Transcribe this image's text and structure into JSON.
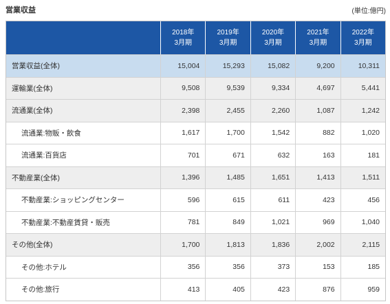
{
  "chart_data": {
    "type": "table",
    "title": "営業収益",
    "unit": "(単位:億円)",
    "columns": [
      {
        "year": "2018年",
        "period": "3月期"
      },
      {
        "year": "2019年",
        "period": "3月期"
      },
      {
        "year": "2020年",
        "period": "3月期"
      },
      {
        "year": "2021年",
        "period": "3月期"
      },
      {
        "year": "2022年",
        "period": "3月期"
      }
    ],
    "rows": [
      {
        "label": "営業収益(全体)",
        "values": [
          15004,
          15293,
          15082,
          9200,
          10311
        ]
      },
      {
        "label": "運輸業(全体)",
        "values": [
          9508,
          9539,
          9334,
          4697,
          5441
        ]
      },
      {
        "label": "流通業(全体)",
        "values": [
          2398,
          2455,
          2260,
          1087,
          1242
        ]
      },
      {
        "label": "流通業:物販・飲食",
        "values": [
          1617,
          1700,
          1542,
          882,
          1020
        ]
      },
      {
        "label": "流通業:百貨店",
        "values": [
          701,
          671,
          632,
          163,
          181
        ]
      },
      {
        "label": "不動産業(全体)",
        "values": [
          1396,
          1485,
          1651,
          1413,
          1511
        ]
      },
      {
        "label": "不動産業:ショッピングセンター",
        "values": [
          596,
          615,
          611,
          423,
          456
        ]
      },
      {
        "label": "不動産業:不動産賃貸・販売",
        "values": [
          781,
          849,
          1021,
          969,
          1040
        ]
      },
      {
        "label": "その他(全体)",
        "values": [
          1700,
          1813,
          1836,
          2002,
          2115
        ]
      },
      {
        "label": "その他:ホテル",
        "values": [
          356,
          356,
          373,
          153,
          185
        ]
      },
      {
        "label": "その他:旅行",
        "values": [
          413,
          405,
          423,
          876,
          959
        ]
      }
    ]
  },
  "colors": {
    "header_bg": "#1d57a5",
    "total_row_bg": "#c8dcef",
    "segment_row_bg": "#eeeeee",
    "sub_row_bg": "#ffffff"
  }
}
